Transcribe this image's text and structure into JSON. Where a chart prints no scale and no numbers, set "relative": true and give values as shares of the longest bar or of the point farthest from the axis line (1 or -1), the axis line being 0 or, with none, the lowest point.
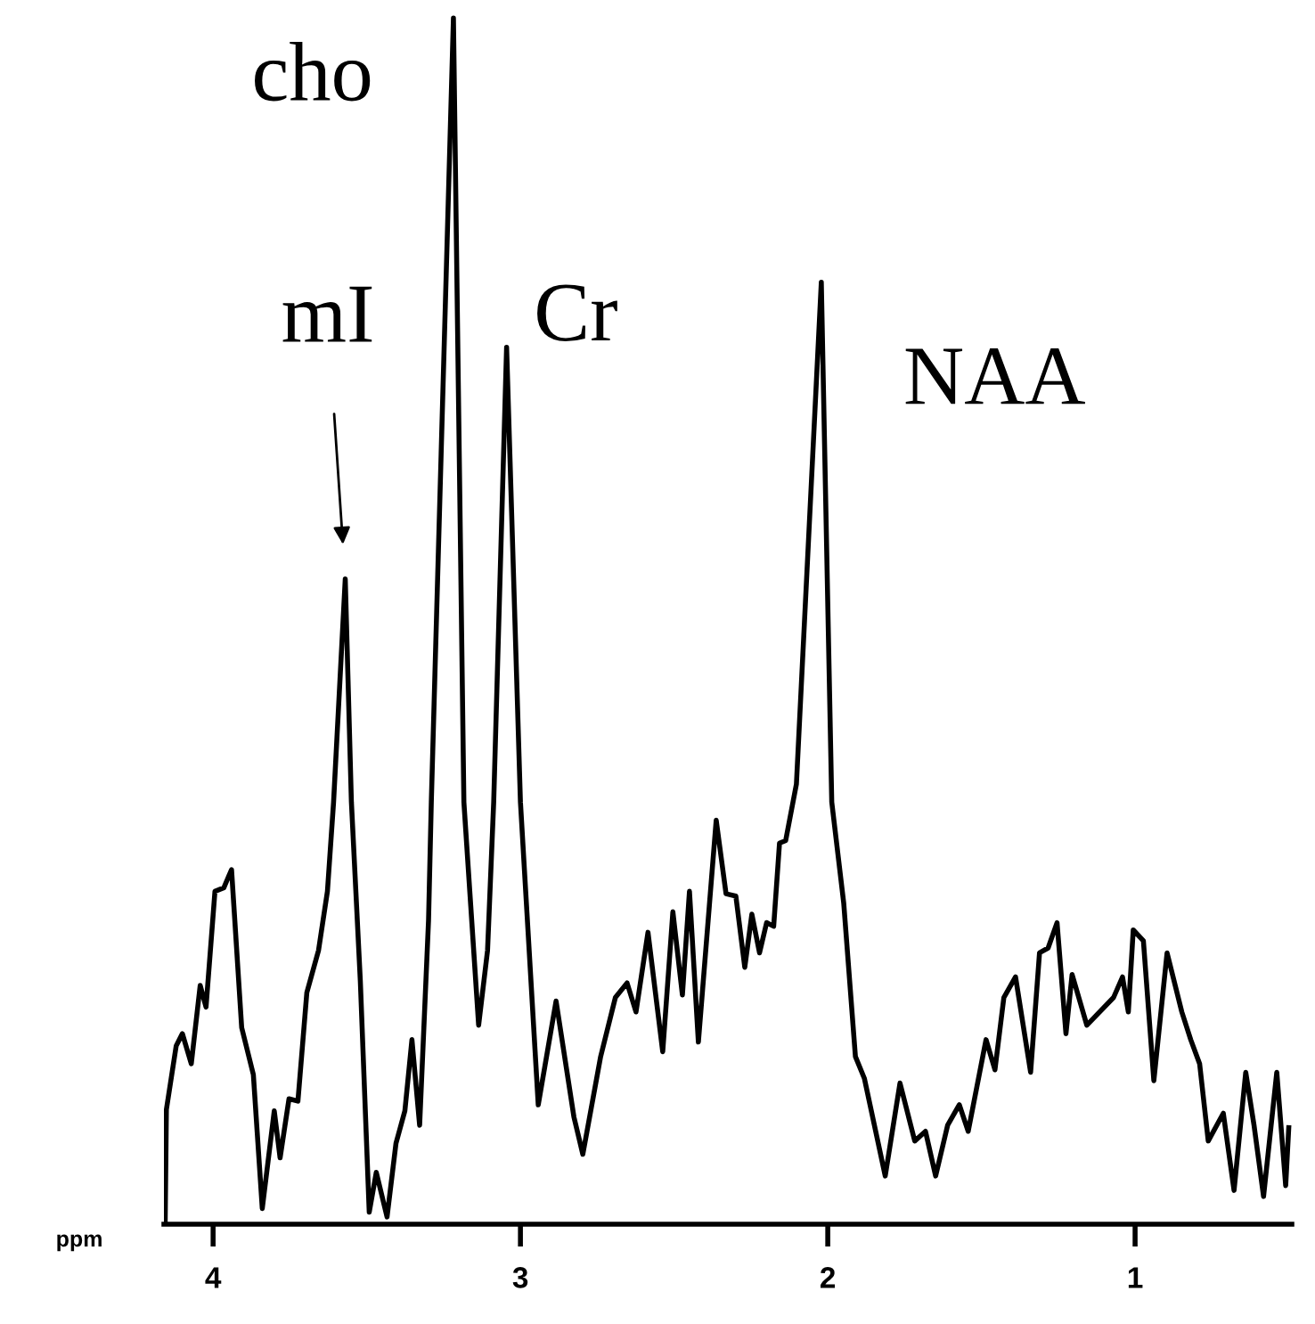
{
  "chart_data": {
    "type": "line",
    "relative": true,
    "xlabel": "ppm",
    "xlim": [
      4.16,
      0.49
    ],
    "xticks": [
      4,
      3,
      2,
      1
    ],
    "grid": false,
    "legend": false,
    "marker": "none",
    "line_style": "solid",
    "annotations": [
      {
        "text": "cho",
        "x": 3.218,
        "y": 1.0
      },
      {
        "text": "mI",
        "x": 3.57,
        "y": 0.535
      },
      {
        "text": "Cr",
        "x": 3.045,
        "y": 0.727
      },
      {
        "text": "NAA",
        "x": 2.021,
        "y": 0.781
      }
    ],
    "series": [
      {
        "color": "#000000",
        "x": [
          4.156,
          4.152,
          4.12,
          4.1,
          4.071,
          4.042,
          4.023,
          3.994,
          3.965,
          3.94,
          3.907,
          3.869,
          3.84,
          3.801,
          3.782,
          3.753,
          3.724,
          3.695,
          3.657,
          3.628,
          3.608,
          3.57,
          3.55,
          3.521,
          3.492,
          3.469,
          3.434,
          3.405,
          3.376,
          3.353,
          3.328,
          3.299,
          3.29,
          3.218,
          3.184,
          3.136,
          3.107,
          3.087,
          3.045,
          3.0,
          2.942,
          2.884,
          2.826,
          2.797,
          2.739,
          2.691,
          2.653,
          2.624,
          2.585,
          2.537,
          2.504,
          2.473,
          2.45,
          2.421,
          2.363,
          2.331,
          2.299,
          2.27,
          2.247,
          2.222,
          2.199,
          2.176,
          2.157,
          2.137,
          2.102,
          2.021,
          1.987,
          1.948,
          1.91,
          1.881,
          1.813,
          1.765,
          1.717,
          1.682,
          1.649,
          1.61,
          1.572,
          1.543,
          1.485,
          1.456,
          1.427,
          1.389,
          1.34,
          1.311,
          1.283,
          1.254,
          1.225,
          1.205,
          1.157,
          1.07,
          1.041,
          1.022,
          1.006,
          0.973,
          0.939,
          0.896,
          0.848,
          0.819,
          0.79,
          0.762,
          0.713,
          0.678,
          0.64,
          0.613,
          0.582,
          0.539,
          0.51,
          0.5
        ],
        "values": [
          0,
          0.095,
          0.148,
          0.158,
          0.133,
          0.198,
          0.18,
          0.276,
          0.279,
          0.294,
          0.163,
          0.124,
          0.013,
          0.094,
          0.055,
          0.104,
          0.102,
          0.192,
          0.227,
          0.276,
          0.35,
          0.535,
          0.35,
          0.202,
          0.01,
          0.043,
          0.006,
          0.067,
          0.094,
          0.153,
          0.082,
          0.252,
          0.35,
          1.0,
          0.35,
          0.165,
          0.227,
          0.35,
          0.727,
          0.35,
          0.099,
          0.185,
          0.089,
          0.058,
          0.139,
          0.188,
          0.2,
          0.176,
          0.242,
          0.143,
          0.259,
          0.19,
          0.276,
          0.151,
          0.335,
          0.274,
          0.272,
          0.213,
          0.257,
          0.225,
          0.25,
          0.247,
          0.316,
          0.318,
          0.365,
          0.781,
          0.35,
          0.266,
          0.139,
          0.121,
          0.04,
          0.117,
          0.069,
          0.077,
          0.04,
          0.082,
          0.099,
          0.077,
          0.153,
          0.128,
          0.188,
          0.205,
          0.126,
          0.225,
          0.229,
          0.25,
          0.158,
          0.207,
          0.165,
          0.188,
          0.205,
          0.176,
          0.244,
          0.235,
          0.119,
          0.225,
          0.176,
          0.153,
          0.133,
          0.069,
          0.092,
          0.028,
          0.126,
          0.082,
          0.023,
          0.126,
          0.032,
          0.08
        ]
      }
    ]
  }
}
